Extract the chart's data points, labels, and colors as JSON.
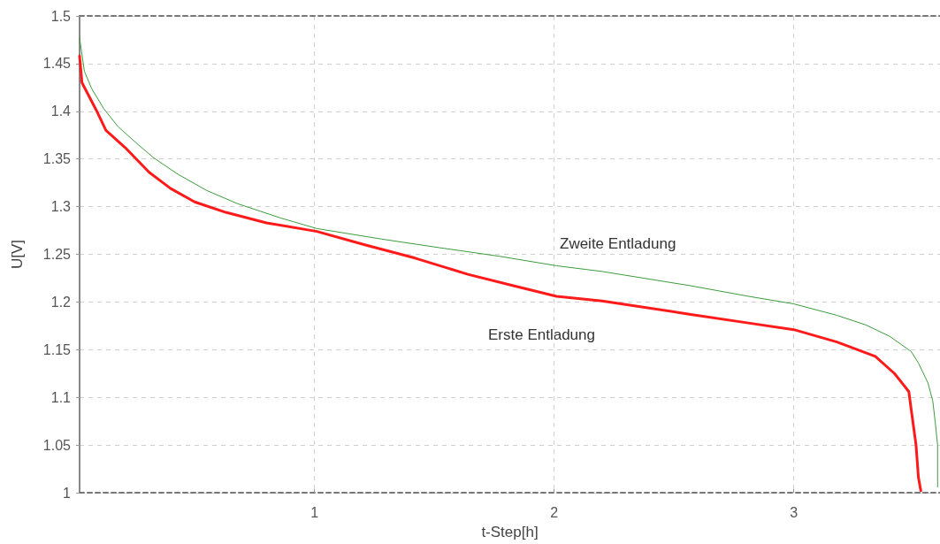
{
  "chart_data": {
    "type": "line",
    "xlabel": "t-Step[h]",
    "ylabel": "U[V]",
    "xlim": [
      0.02,
      3.61
    ],
    "xticks": [
      1,
      2,
      3
    ],
    "ylim": [
      1,
      1.5
    ],
    "yticks": [
      1,
      1.05,
      1.1,
      1.15,
      1.2,
      1.25,
      1.3,
      1.35,
      1.4,
      1.45,
      1.5
    ],
    "grid": true,
    "marker": "none",
    "line_style": "solid",
    "series": [
      {
        "name": "Erste Entladung",
        "color": "#ff1a1a",
        "x": [
          0.02,
          0.03,
          0.09,
          0.13,
          0.21,
          0.31,
          0.4,
          0.5,
          0.63,
          0.8,
          1.01,
          1.21,
          1.42,
          1.64,
          1.83,
          2.01,
          2.2,
          2.57,
          2.81,
          3,
          3.18,
          3.34,
          3.42,
          3.48,
          3.49,
          3.51,
          3.52,
          3.53
        ],
        "values": [
          1.458,
          1.43,
          1.401,
          1.38,
          1.362,
          1.336,
          1.319,
          1.305,
          1.294,
          1.283,
          1.274,
          1.26,
          1.246,
          1.229,
          1.217,
          1.206,
          1.201,
          1.187,
          1.178,
          1.171,
          1.158,
          1.143,
          1.125,
          1.106,
          1.087,
          1.05,
          1.016,
          1.002
        ]
      },
      {
        "name": "Zweite Entladung",
        "color": "#3c9c3c",
        "x": [
          0.02,
          0.04,
          0.07,
          0.12,
          0.18,
          0.26,
          0.33,
          0.43,
          0.55,
          0.68,
          0.86,
          1.01,
          1.28,
          1.52,
          1.77,
          2.01,
          2.2,
          2.57,
          2.81,
          3,
          3.18,
          3.3,
          3.4,
          3.49,
          3.52,
          3.56,
          3.58,
          3.59,
          3.6,
          3.6
        ],
        "values": [
          1.477,
          1.442,
          1.424,
          1.403,
          1.384,
          1.366,
          1.351,
          1.334,
          1.317,
          1.303,
          1.288,
          1.277,
          1.266,
          1.257,
          1.248,
          1.238,
          1.232,
          1.217,
          1.206,
          1.198,
          1.186,
          1.176,
          1.164,
          1.148,
          1.136,
          1.115,
          1.096,
          1.074,
          1.05,
          1.006
        ]
      }
    ]
  }
}
